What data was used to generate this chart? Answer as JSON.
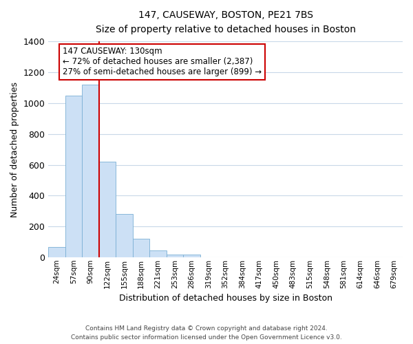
{
  "title": "147, CAUSEWAY, BOSTON, PE21 7BS",
  "subtitle": "Size of property relative to detached houses in Boston",
  "xlabel": "Distribution of detached houses by size in Boston",
  "ylabel": "Number of detached properties",
  "bar_labels": [
    "24sqm",
    "57sqm",
    "90sqm",
    "122sqm",
    "155sqm",
    "188sqm",
    "221sqm",
    "253sqm",
    "286sqm",
    "319sqm",
    "352sqm",
    "384sqm",
    "417sqm",
    "450sqm",
    "483sqm",
    "515sqm",
    "548sqm",
    "581sqm",
    "614sqm",
    "646sqm",
    "679sqm"
  ],
  "bar_values": [
    65,
    1050,
    1120,
    620,
    280,
    120,
    42,
    18,
    15,
    0,
    0,
    0,
    0,
    0,
    0,
    0,
    0,
    0,
    0,
    0,
    0
  ],
  "bar_color": "#cce0f5",
  "bar_edge_color": "#7aafd4",
  "vline_color": "#cc0000",
  "ylim": [
    0,
    1400
  ],
  "yticks": [
    0,
    200,
    400,
    600,
    800,
    1000,
    1200,
    1400
  ],
  "annotation_title": "147 CAUSEWAY: 130sqm",
  "annotation_line1": "← 72% of detached houses are smaller (2,387)",
  "annotation_line2": "27% of semi-detached houses are larger (899) →",
  "annotation_box_color": "#ffffff",
  "annotation_box_edge": "#cc0000",
  "footer_line1": "Contains HM Land Registry data © Crown copyright and database right 2024.",
  "footer_line2": "Contains public sector information licensed under the Open Government Licence v3.0.",
  "bg_color": "#ffffff",
  "grid_color": "#c8d8e8"
}
